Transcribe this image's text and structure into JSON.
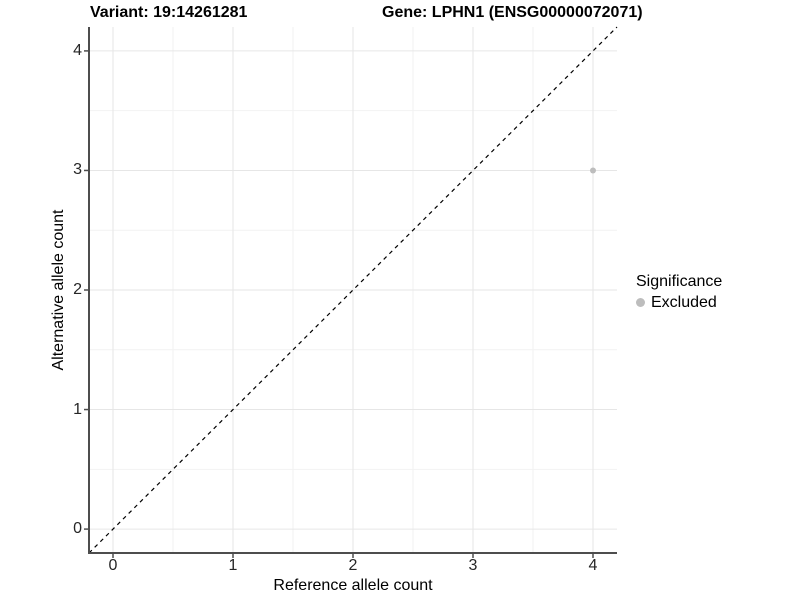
{
  "page": {
    "background": "#ffffff"
  },
  "chart_data": {
    "type": "scatter",
    "titles": {
      "left": "Variant: 19:14261281",
      "right": "Gene: LPHN1 (ENSG00000072071)"
    },
    "xlabel": "Reference allele count",
    "ylabel": "Alternative allele count",
    "xlim": [
      -0.2,
      4.2
    ],
    "ylim": [
      -0.2,
      4.2
    ],
    "x_ticks": [
      0,
      1,
      2,
      3,
      4
    ],
    "y_ticks": [
      0,
      1,
      2,
      3,
      4
    ],
    "x_minor_ticks": [
      0.5,
      1.5,
      2.5,
      3.5
    ],
    "y_minor_ticks": [
      0.5,
      1.5,
      2.5,
      3.5
    ],
    "grid": {
      "major": true,
      "minor": true
    },
    "points": [
      {
        "x": 4,
        "y": 3,
        "significance": "Excluded"
      }
    ],
    "identity_line": {
      "from": [
        -0.2,
        -0.2
      ],
      "to": [
        4.2,
        4.2
      ],
      "style": "dashed",
      "color": "#000000"
    },
    "legend": {
      "title": "Significance",
      "position": "right",
      "items": [
        {
          "label": "Excluded",
          "color": "#bdbdbd"
        }
      ]
    },
    "colors": {
      "point": "#bdbdbd",
      "grid_major": "#e6e6e6",
      "grid_minor": "#f2f2f2",
      "axis_line": "#4d4d4d",
      "tick_mark": "#4d4d4d",
      "tick_text": "#262626",
      "title_text": "#000000"
    }
  }
}
